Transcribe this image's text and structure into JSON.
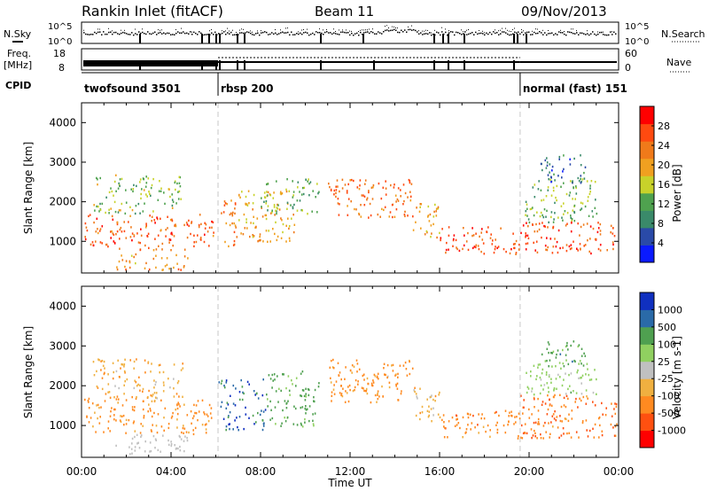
{
  "header": {
    "title": "Rankin Inlet (fitACF)",
    "beam": "Beam 11",
    "date": "09/Nov/2013"
  },
  "strips": {
    "sky_label": "N.Sky",
    "search_label": "N.Search",
    "freq_label_1": "Freq.",
    "freq_label_2": "[MHz]",
    "nave_label": "Nave",
    "cpid_label": "CPID",
    "noise_ticks_left": [
      "10^5",
      "10^0"
    ],
    "noise_ticks_right": [
      "10^5",
      "10^0"
    ],
    "freq_ticks": [
      "18",
      "8"
    ],
    "nave_ticks": [
      "60",
      "0"
    ]
  },
  "cpid_segments": [
    {
      "label": "twofsound 3501",
      "start_h": 0.0,
      "end_h": 6.1
    },
    {
      "label": "rbsp 200",
      "start_h": 6.1,
      "end_h": 19.6
    },
    {
      "label": "normal (fast) 151",
      "start_h": 19.6,
      "end_h": 24.0
    }
  ],
  "colors": {
    "power_scale": [
      "#0a1aff",
      "#2a4aa8",
      "#3a8a6a",
      "#4fa24f",
      "#c8d22a",
      "#f0a020",
      "#f07a1a",
      "#ff4a10",
      "#ff0000"
    ],
    "velocity_scale": [
      "#ff0000",
      "#ff5010",
      "#ff8a20",
      "#f0b040",
      "#c0c0c0",
      "#90d060",
      "#4fa050",
      "#2a6aa8",
      "#1030c0"
    ],
    "frame": "#000000",
    "terminator_line": "#c8c8c8"
  },
  "power_colorbar": {
    "label": "Power [dB]",
    "ticks": [
      "28",
      "24",
      "20",
      "16",
      "12",
      "8",
      "4"
    ]
  },
  "velocity_colorbar": {
    "label": "Velocity [m s-1]",
    "ticks": [
      "1000",
      "500",
      "100",
      "25",
      "-25",
      "-100",
      "-500",
      "-1000"
    ]
  },
  "chart_data": [
    {
      "type": "heatmap",
      "title": "",
      "xlabel": "Time UT",
      "ylabel": "Slant Range [km]",
      "xlim": [
        0,
        24
      ],
      "ylim": [
        200,
        4500
      ],
      "yticks": [
        "1000",
        "2000",
        "3000",
        "4000"
      ],
      "xticks": [
        "00:00",
        "04:00",
        "08:00",
        "12:00",
        "16:00",
        "20:00",
        "00:00"
      ],
      "colorbar": "Power [dB]",
      "patches": [
        {
          "t0": 0.1,
          "t1": 5.9,
          "r0": 800,
          "r1": 1700,
          "value": 26
        },
        {
          "t0": 0.5,
          "t1": 4.5,
          "r0": 1700,
          "r1": 2700,
          "value": 14
        },
        {
          "t0": 1.5,
          "t1": 4.8,
          "r0": 300,
          "r1": 700,
          "value": 22
        },
        {
          "t0": 6.1,
          "t1": 7.0,
          "r0": 900,
          "r1": 2100,
          "value": 24
        },
        {
          "t0": 7.0,
          "t1": 9.6,
          "r0": 1000,
          "r1": 2300,
          "value": 20
        },
        {
          "t0": 8.0,
          "t1": 10.6,
          "r0": 1700,
          "r1": 2600,
          "value": 12
        },
        {
          "t0": 11.0,
          "t1": 14.8,
          "r0": 1600,
          "r1": 2600,
          "value": 25
        },
        {
          "t0": 14.8,
          "t1": 16.0,
          "r0": 1100,
          "r1": 2000,
          "value": 20
        },
        {
          "t0": 16.0,
          "t1": 19.6,
          "r0": 700,
          "r1": 1400,
          "value": 27
        },
        {
          "t0": 19.6,
          "t1": 23.9,
          "r0": 700,
          "r1": 1500,
          "value": 27
        },
        {
          "t0": 19.8,
          "t1": 23.0,
          "r0": 1500,
          "r1": 2600,
          "value": 13
        },
        {
          "t0": 20.5,
          "t1": 22.5,
          "r0": 2500,
          "r1": 3200,
          "value": 6
        }
      ]
    },
    {
      "type": "heatmap",
      "title": "",
      "xlabel": "Time UT",
      "ylabel": "Slant Range [km]",
      "xlim": [
        0,
        24
      ],
      "ylim": [
        200,
        4500
      ],
      "yticks": [
        "1000",
        "2000",
        "3000",
        "4000"
      ],
      "xticks": [
        "00:00",
        "04:00",
        "08:00",
        "12:00",
        "16:00",
        "20:00",
        "00:00"
      ],
      "colorbar": "Velocity [m s-1]",
      "patches": [
        {
          "t0": 0.1,
          "t1": 5.9,
          "r0": 800,
          "r1": 1700,
          "value": -200
        },
        {
          "t0": 0.5,
          "t1": 4.5,
          "r0": 1700,
          "r1": 2700,
          "value": -80
        },
        {
          "t0": 1.5,
          "t1": 4.8,
          "r0": 300,
          "r1": 800,
          "value": 0
        },
        {
          "t0": 6.1,
          "t1": 8.2,
          "r0": 900,
          "r1": 2200,
          "value": 800
        },
        {
          "t0": 8.2,
          "t1": 10.6,
          "r0": 1000,
          "r1": 2400,
          "value": 200
        },
        {
          "t0": 11.0,
          "t1": 14.8,
          "r0": 1600,
          "r1": 2700,
          "value": -200
        },
        {
          "t0": 14.8,
          "t1": 16.0,
          "r0": 1100,
          "r1": 2000,
          "value": -60
        },
        {
          "t0": 16.0,
          "t1": 19.6,
          "r0": 700,
          "r1": 1400,
          "value": -300
        },
        {
          "t0": 19.6,
          "t1": 23.9,
          "r0": 700,
          "r1": 1800,
          "value": -400
        },
        {
          "t0": 19.8,
          "t1": 23.0,
          "r0": 1800,
          "r1": 2600,
          "value": 50
        },
        {
          "t0": 20.5,
          "t1": 22.5,
          "r0": 2500,
          "r1": 3200,
          "value": 300
        }
      ]
    }
  ]
}
